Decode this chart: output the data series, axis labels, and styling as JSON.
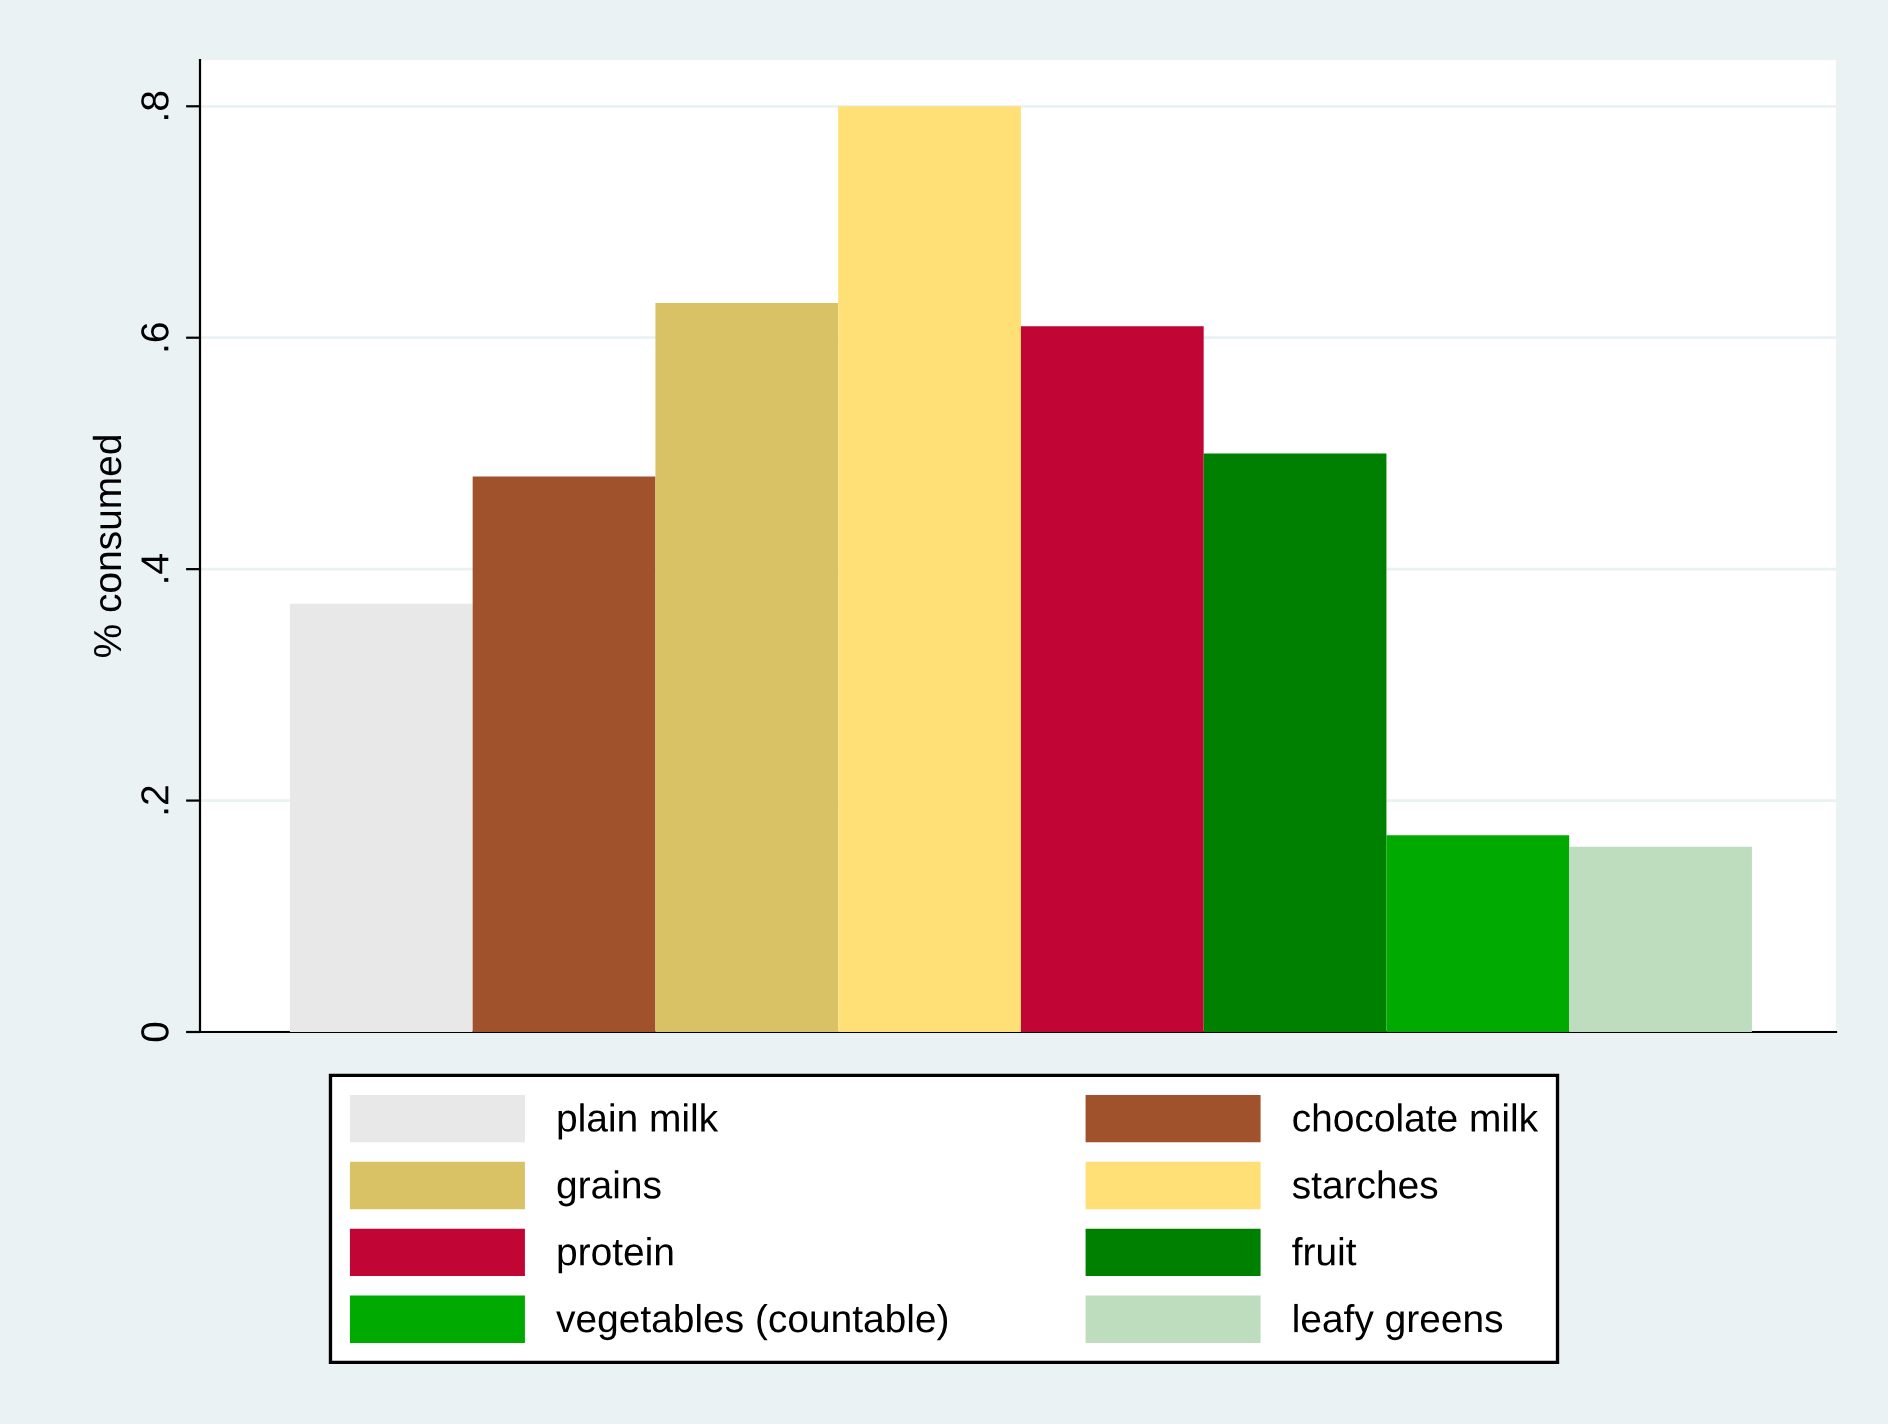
{
  "chart_data": {
    "type": "bar",
    "ylabel": "% consumed",
    "categories": [
      null
    ],
    "series": [
      {
        "name": "plain milk",
        "color": "#e8e8e8",
        "values": [
          0.37
        ]
      },
      {
        "name": "chocolate milk",
        "color": "#a0522d",
        "values": [
          0.48
        ]
      },
      {
        "name": "grains",
        "color": "#d9c266",
        "values": [
          0.63
        ]
      },
      {
        "name": "starches",
        "color": "#ffe077",
        "values": [
          0.8
        ]
      },
      {
        "name": "protein",
        "color": "#c10534",
        "values": [
          0.61
        ]
      },
      {
        "name": "fruit",
        "color": "#008000",
        "values": [
          0.5
        ]
      },
      {
        "name": "vegetables (countable)",
        "color": "#00aa00",
        "values": [
          0.17
        ]
      },
      {
        "name": "leafy greens",
        "color": "#bedcbe",
        "values": [
          0.16
        ]
      }
    ],
    "ylim": [
      0,
      0.84
    ],
    "yticks": [
      {
        "value": 0,
        "label": "0"
      },
      {
        "value": 0.2,
        "label": ".2"
      },
      {
        "value": 0.4,
        "label": ".4"
      },
      {
        "value": 0.6,
        "label": ".6"
      },
      {
        "value": 0.8,
        "label": ".8"
      }
    ],
    "grid": "y",
    "legend": "bottom"
  }
}
